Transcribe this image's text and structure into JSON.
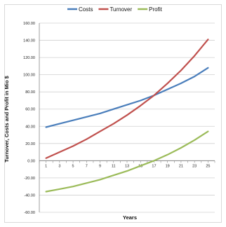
{
  "chart_data": {
    "type": "line",
    "xlabel": "Years",
    "ylabel": "Turnover, Costs and Profit in Mio $",
    "x": [
      1,
      3,
      5,
      7,
      9,
      11,
      13,
      15,
      17,
      19,
      21,
      23,
      25
    ],
    "x_ticks": [
      "1",
      "3",
      "5",
      "7",
      "9",
      "11",
      "13",
      "15",
      "17",
      "19",
      "21",
      "23",
      "25"
    ],
    "y_ticks": [
      "-60.00",
      "-40.00",
      "-20.00",
      "0.00",
      "20.00",
      "40.00",
      "60.00",
      "80.00",
      "100.00",
      "120.00",
      "140.00",
      "160.00"
    ],
    "ylim": [
      -60,
      160
    ],
    "xlim": [
      0,
      26
    ],
    "grid": true,
    "legend_position": "top",
    "series": [
      {
        "name": "Costs",
        "color": "#4a7ebb",
        "values": [
          39,
          43,
          47,
          51,
          55,
          60,
          65,
          70,
          76,
          83,
          90,
          98,
          108
        ]
      },
      {
        "name": "Turnover",
        "color": "#c0504d",
        "values": [
          3,
          10,
          17,
          25,
          34,
          43,
          53,
          64,
          76,
          90,
          105,
          122,
          141
        ]
      },
      {
        "name": "Profit",
        "color": "#9bbb59",
        "values": [
          -36,
          -33,
          -30,
          -26,
          -22,
          -17,
          -12,
          -6,
          0,
          7,
          15,
          24,
          34
        ]
      }
    ]
  }
}
